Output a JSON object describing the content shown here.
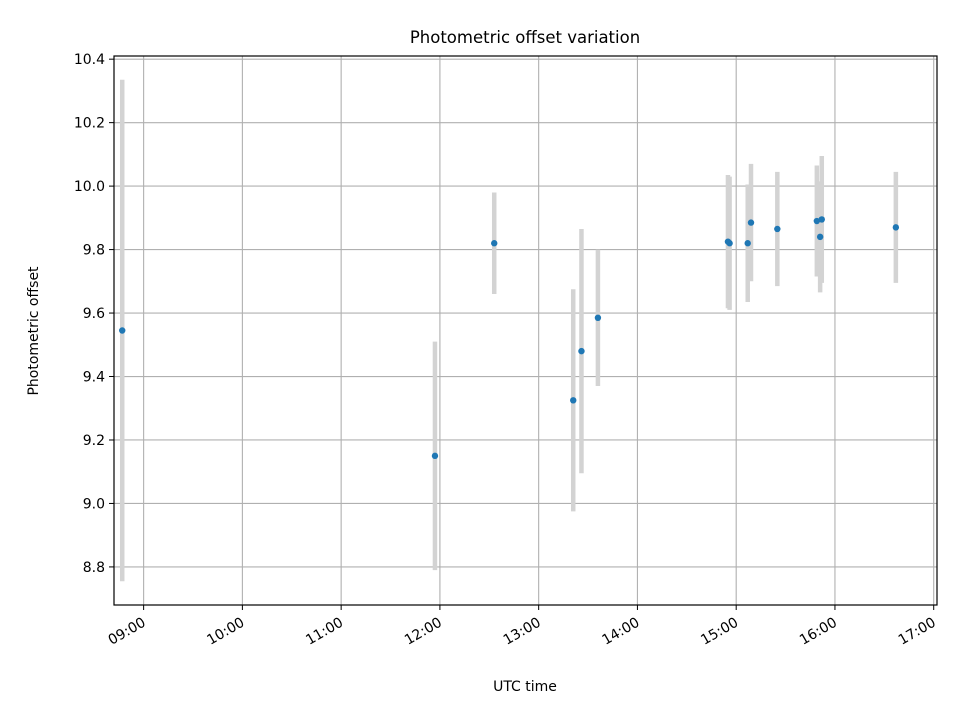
{
  "chart_data": {
    "type": "scatter",
    "title": "Photometric offset variation",
    "xlabel": "UTC time",
    "ylabel": "Photometric offset",
    "xlim": [
      "08:42",
      "17:02"
    ],
    "ylim": [
      8.68,
      10.41
    ],
    "x_ticks": [
      "09:00",
      "10:00",
      "11:00",
      "12:00",
      "13:00",
      "14:00",
      "15:00",
      "16:00",
      "17:00"
    ],
    "y_ticks": [
      "8.8",
      "9.0",
      "9.2",
      "9.4",
      "9.6",
      "9.8",
      "10.0",
      "10.2",
      "10.4"
    ],
    "grid": true,
    "series": [
      {
        "marker_color": "#1f77b4",
        "errorbar_color": "#d3d3d3",
        "points": [
          {
            "x": "08:47",
            "y": 9.545,
            "yerr": 0.79
          },
          {
            "x": "11:57",
            "y": 9.15,
            "yerr": 0.36
          },
          {
            "x": "12:33",
            "y": 9.82,
            "yerr": 0.16
          },
          {
            "x": "13:21",
            "y": 9.325,
            "yerr": 0.35
          },
          {
            "x": "13:26",
            "y": 9.48,
            "yerr": 0.385
          },
          {
            "x": "13:36",
            "y": 9.585,
            "yerr": 0.215
          },
          {
            "x": "14:55",
            "y": 9.825,
            "yerr": 0.21
          },
          {
            "x": "14:56",
            "y": 9.82,
            "yerr": 0.21
          },
          {
            "x": "15:07",
            "y": 9.82,
            "yerr": 0.185
          },
          {
            "x": "15:09",
            "y": 9.885,
            "yerr": 0.185
          },
          {
            "x": "15:25",
            "y": 9.865,
            "yerr": 0.18
          },
          {
            "x": "15:49",
            "y": 9.89,
            "yerr": 0.175
          },
          {
            "x": "15:51",
            "y": 9.84,
            "yerr": 0.175
          },
          {
            "x": "15:52",
            "y": 9.895,
            "yerr": 0.2
          },
          {
            "x": "16:37",
            "y": 9.87,
            "yerr": 0.175
          }
        ]
      }
    ]
  }
}
